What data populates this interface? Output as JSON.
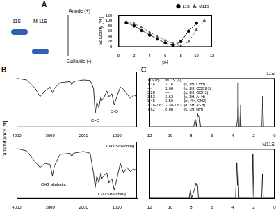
{
  "panels": [
    "A",
    "B",
    "C"
  ],
  "gel": {
    "lanes": [
      "11S",
      "M 11S"
    ],
    "anode": "Anode (+)",
    "cathode": "Cathode (-)"
  },
  "chart_data": [
    {
      "type": "line",
      "xlabel": "pH",
      "ylabel": "Solubility (%)",
      "xlim": [
        0,
        12
      ],
      "xticks": [
        0,
        2,
        4,
        6,
        8,
        10,
        12
      ],
      "ylim": [
        0,
        120
      ],
      "yticks": [
        0,
        20,
        40,
        60,
        80,
        100,
        120
      ],
      "grid": false,
      "legend": "upper right",
      "series": [
        {
          "name": "11S",
          "color": "#000000",
          "marker": "circle",
          "line_style": "solid",
          "x": [
            1,
            2,
            3,
            4,
            5,
            6,
            7,
            8,
            9,
            10
          ],
          "values": [
            92,
            80,
            62,
            45,
            30,
            15,
            5,
            20,
            60,
            90
          ]
        },
        {
          "name": "M11S",
          "color": "#555555",
          "marker": "triangle",
          "line_style": "dashed",
          "x": [
            1,
            2,
            3,
            4,
            5,
            6,
            7,
            8,
            9,
            10,
            11
          ],
          "values": [
            95,
            88,
            75,
            55,
            40,
            25,
            12,
            3,
            20,
            65,
            100
          ]
        }
      ]
    },
    {
      "type": "line",
      "ylabel": "Transmittance [%]",
      "xlim": [
        4000,
        400
      ],
      "xticks": [
        4000,
        3000,
        2000,
        1000
      ],
      "ylim": [
        0,
        100
      ],
      "tick_labels": "x",
      "grid": false,
      "color": "#000000",
      "x": [
        4000,
        3700,
        3450,
        3300,
        3150,
        3000,
        2930,
        2870,
        2700,
        2400,
        2350,
        2300,
        2000,
        1800,
        1700,
        1650,
        1600,
        1540,
        1480,
        1450,
        1400,
        1300,
        1240,
        1150,
        1080,
        1000,
        900,
        800,
        700,
        600,
        500,
        400
      ],
      "values": [
        88,
        85,
        70,
        55,
        65,
        72,
        62,
        70,
        80,
        82,
        76,
        82,
        85,
        84,
        70,
        25,
        45,
        35,
        55,
        48,
        52,
        65,
        55,
        60,
        40,
        55,
        72,
        68,
        60,
        52,
        58,
        55
      ],
      "annotations": [
        {
          "text": "C=O",
          "x": 1650,
          "y": 12
        },
        {
          "text": "C-O",
          "x": 1080,
          "y": 28
        }
      ]
    },
    {
      "type": "line",
      "xlim": [
        4000,
        400
      ],
      "xticks": [
        4000,
        3000,
        2000,
        1000
      ],
      "ylim": [
        0,
        100
      ],
      "tick_labels": "x",
      "grid": false,
      "color": "#000000",
      "x": [
        4000,
        3700,
        3450,
        3300,
        3150,
        3000,
        2930,
        2870,
        2700,
        2400,
        2350,
        2300,
        2000,
        1800,
        1700,
        1650,
        1600,
        1540,
        1480,
        1450,
        1400,
        1300,
        1240,
        1150,
        1080,
        1000,
        900,
        800,
        700,
        600,
        500,
        400
      ],
      "values": [
        88,
        84,
        65,
        55,
        62,
        60,
        40,
        58,
        78,
        80,
        74,
        80,
        83,
        80,
        45,
        20,
        40,
        28,
        45,
        35,
        40,
        45,
        28,
        35,
        15,
        35,
        62,
        45,
        55,
        48,
        52,
        50
      ],
      "annotations": [
        {
          "text": "CH3 aliphatic",
          "x": 2900,
          "y": 25
        },
        {
          "text": "C-O Stretching",
          "x": 1150,
          "y": 8
        },
        {
          "text": "CH3 Stretching",
          "x": 900,
          "y": 92
        }
      ]
    },
    {
      "type": "line",
      "title": "11S",
      "xlim": [
        12,
        0
      ],
      "xticks": [
        12,
        10,
        8,
        6,
        4,
        2,
        0
      ],
      "ylim": [
        0,
        110
      ],
      "tick_labels": "x",
      "grid": false,
      "color": "#000000",
      "x": [
        12,
        7.75,
        7.62,
        7.5,
        7.38,
        7.3,
        7.22,
        7.1,
        3.65,
        3.55,
        3.52,
        3.5,
        3.48,
        3.44,
        3.34,
        3.28,
        3.22,
        1.22,
        1.14,
        1.06,
        0
      ],
      "values": [
        1,
        1,
        18,
        2,
        30,
        22,
        26,
        1,
        1,
        20,
        100,
        30,
        45,
        1,
        1,
        50,
        1,
        1,
        70,
        1,
        1
      ]
    },
    {
      "type": "line",
      "title": "M11S",
      "xlim": [
        12,
        0
      ],
      "xticks": [
        12,
        10,
        8,
        6,
        4,
        2,
        0
      ],
      "ylim": [
        0,
        110
      ],
      "tick_labels": "x",
      "grid": false,
      "color": "#000000",
      "x": [
        12,
        8.2,
        8.08,
        7.96,
        7.63,
        7.55,
        7.48,
        7.42,
        7.38,
        7.3,
        3.75,
        3.62,
        3.55,
        3.5,
        3.42,
        2.16,
        2.08,
        2.0,
        1.24,
        1.16,
        1.08,
        0
      ],
      "values": [
        1,
        1,
        20,
        1,
        25,
        35,
        30,
        32,
        28,
        1,
        1,
        80,
        30,
        60,
        1,
        1,
        100,
        1,
        1,
        55,
        1,
        1
      ]
    }
  ],
  "nmr_table": {
    "header": [
      "11S (δ)",
      "M11S (δ)"
    ],
    "rows": [
      [
        "1.14",
        "1.16",
        "(s, 3H, CH3)"
      ],
      [
        "—",
        "2.08",
        "(s, 3H, COCH3)"
      ],
      [
        "3.28",
        "—",
        "(s, 3H, OCH3)"
      ],
      [
        "3.52",
        "3.62",
        "(s, 2H, Ar-H)"
      ],
      [
        "3.48",
        "3.50",
        "(m, 4H, CH2)"
      ],
      [
        "7.18-7.63",
        "7.38-7.63",
        "(d, 5H, Ar-H)"
      ],
      [
        "7.62",
        "8.08",
        "(s, 1H, NH)"
      ]
    ]
  }
}
